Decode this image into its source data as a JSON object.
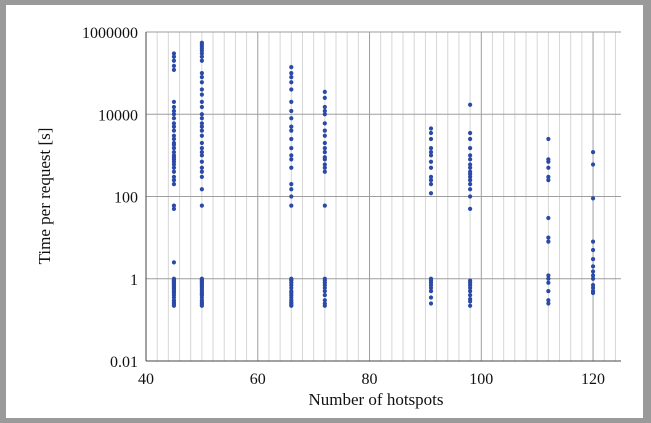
{
  "chart_data": {
    "type": "scatter",
    "title": "",
    "xlabel": "Number of hotspots",
    "ylabel": "Time per request [s]",
    "xlim": [
      40,
      125
    ],
    "ylim": [
      0.01,
      1000000
    ],
    "y_scale": "log",
    "grid": {
      "major": true,
      "minor_x": true
    },
    "xticks": [
      40,
      60,
      80,
      100,
      120
    ],
    "xtick_labels": [
      "40",
      "60",
      "80",
      "100",
      "120"
    ],
    "yticks": [
      0.01,
      1,
      100,
      10000,
      1000000
    ],
    "ytick_labels": [
      "0.01",
      "1",
      "100",
      "10000",
      "1000000"
    ],
    "colors": {
      "points": "#2b4aa8",
      "major_grid": "#9e9e9e",
      "minor_grid": "#d6d6d6",
      "frame": "#9a9a9a"
    },
    "series": [
      {
        "x": [
          45,
          45,
          45,
          45,
          45,
          45,
          45,
          45,
          45,
          45,
          45,
          45,
          45,
          45,
          45,
          45,
          45,
          45,
          45,
          45,
          45,
          45,
          45,
          45,
          45,
          45,
          45,
          45,
          45,
          45,
          45,
          45,
          45,
          45,
          45,
          45,
          45,
          45,
          45,
          45,
          45,
          45,
          45,
          45,
          45,
          45,
          45,
          45,
          45,
          45,
          45,
          45,
          45,
          45,
          45,
          45,
          50,
          50,
          50,
          50,
          50,
          50,
          50,
          50,
          50,
          50,
          50,
          50,
          50,
          50,
          50,
          50,
          50,
          50,
          50,
          50,
          50,
          50,
          50,
          50,
          50,
          50,
          50,
          50,
          50,
          50,
          50,
          50,
          50,
          50,
          50,
          50,
          50,
          50,
          50,
          50,
          50,
          50,
          50,
          50,
          50,
          50,
          50,
          50,
          50,
          50,
          50,
          66,
          66,
          66,
          66,
          66,
          66,
          66,
          66,
          66,
          66,
          66,
          66,
          66,
          66,
          66,
          66,
          66,
          66,
          66,
          66,
          66,
          66,
          66,
          66,
          66,
          66,
          66,
          66,
          66,
          66,
          66,
          66,
          66,
          66,
          72,
          72,
          72,
          72,
          72,
          72,
          72,
          72,
          72,
          72,
          72,
          72,
          72,
          72,
          72,
          72,
          72,
          72,
          72,
          72,
          72,
          72,
          72,
          72,
          72,
          72,
          72,
          91,
          91,
          91,
          91,
          91,
          91,
          91,
          91,
          91,
          91,
          91,
          91,
          91,
          91,
          91,
          91,
          91,
          91,
          91,
          91,
          98,
          98,
          98,
          98,
          98,
          98,
          98,
          98,
          98,
          98,
          98,
          98,
          98,
          98,
          98,
          98,
          98,
          98,
          98,
          98,
          98,
          98,
          98,
          98,
          98,
          112,
          112,
          112,
          112,
          112,
          112,
          112,
          112,
          112,
          112,
          112,
          112,
          112,
          112,
          112,
          120,
          120,
          120,
          120,
          120,
          120,
          120,
          120,
          120,
          120,
          120,
          120,
          120,
          120
        ],
        "y": [
          300000,
          250000,
          200000,
          150000,
          120000,
          20000,
          15000,
          12000,
          10000,
          8000,
          6000,
          5000,
          4000,
          3000,
          2500,
          2000,
          1800,
          1500,
          1200,
          1000,
          900,
          800,
          700,
          600,
          500,
          400,
          300,
          250,
          200,
          60,
          50,
          2.5,
          1,
          0.9,
          0.85,
          0.8,
          0.75,
          0.7,
          0.65,
          0.6,
          0.55,
          0.5,
          0.45,
          0.4,
          0.35,
          0.3,
          0.27,
          0.25,
          0.23,
          0.22,
          0.95,
          0.88,
          0.78,
          0.68,
          0.58,
          0.48,
          550000,
          500000,
          450000,
          400000,
          350000,
          300000,
          250000,
          200000,
          100000,
          80000,
          60000,
          40000,
          30000,
          20000,
          15000,
          10000,
          8000,
          6000,
          5000,
          4000,
          3000,
          2000,
          1500,
          1200,
          1000,
          700,
          500,
          400,
          300,
          150,
          60,
          1,
          0.9,
          0.8,
          0.7,
          0.6,
          0.5,
          0.45,
          0.4,
          0.35,
          0.3,
          0.27,
          0.25,
          0.23,
          0.22,
          0.95,
          0.85,
          0.75,
          0.65,
          0.55,
          0.42,
          140000,
          100000,
          80000,
          60000,
          40000,
          20000,
          12000,
          8000,
          5000,
          4000,
          2500,
          1500,
          1000,
          800,
          500,
          200,
          150,
          100,
          60,
          1,
          0.9,
          0.8,
          0.7,
          0.6,
          0.5,
          0.45,
          0.4,
          0.35,
          0.3,
          0.27,
          0.25,
          0.23,
          0.22,
          0.95,
          35000,
          25000,
          15000,
          12000,
          10000,
          6000,
          4000,
          3000,
          2000,
          1500,
          1200,
          900,
          800,
          600,
          500,
          400,
          60,
          1,
          0.9,
          0.8,
          0.7,
          0.6,
          0.5,
          0.4,
          0.3,
          0.25,
          0.22,
          4500,
          3500,
          2500,
          1500,
          1200,
          1000,
          700,
          500,
          300,
          250,
          200,
          120,
          1,
          0.9,
          0.8,
          0.7,
          0.6,
          0.5,
          0.35,
          0.25,
          17000,
          3500,
          2500,
          1500,
          1000,
          800,
          600,
          500,
          400,
          350,
          300,
          250,
          200,
          150,
          100,
          50,
          0.9,
          0.8,
          0.7,
          0.6,
          0.5,
          0.4,
          0.32,
          0.28,
          0.22,
          2500,
          800,
          700,
          500,
          300,
          250,
          30,
          10,
          8,
          1.2,
          1,
          0.8,
          0.5,
          0.3,
          0.25,
          1200,
          600,
          90,
          8,
          5,
          3,
          2,
          1.5,
          1.2,
          1,
          0.7,
          0.6,
          0.5,
          0.45
        ]
      }
    ]
  }
}
